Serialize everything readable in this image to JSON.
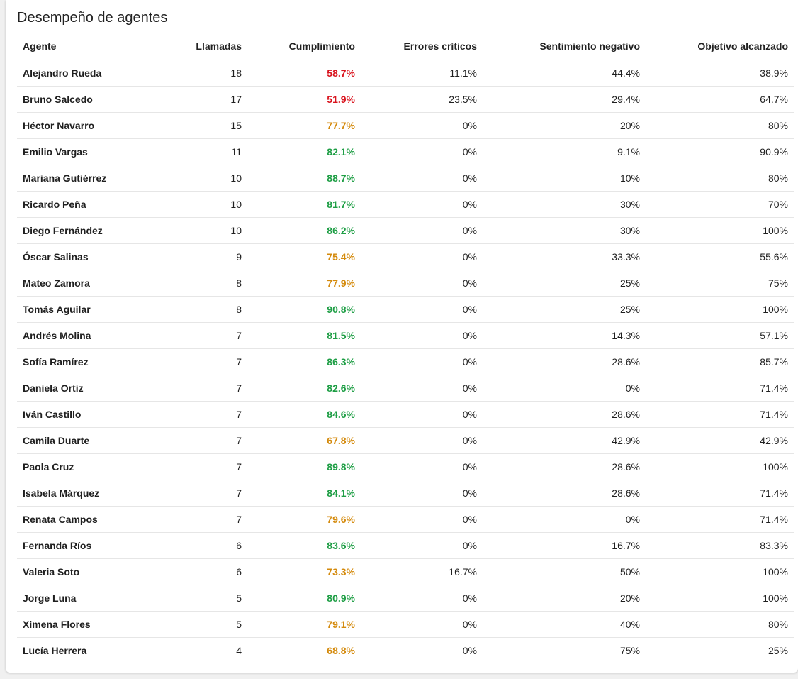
{
  "title": "Desempeño de agentes",
  "colors": {
    "low": "#d9141e",
    "mid": "#d48a0c",
    "high": "#1e9e45"
  },
  "columns": [
    "Agente",
    "Llamadas",
    "Cumplimiento",
    "Errores críticos",
    "Sentimiento negativo",
    "Objetivo alcanzado"
  ],
  "rows": [
    {
      "agent": "Alejandro Rueda",
      "calls": "18",
      "compliance": "58.7%",
      "level": "low",
      "critical": "11.1%",
      "negative": "44.4%",
      "goal": "38.9%"
    },
    {
      "agent": "Bruno Salcedo",
      "calls": "17",
      "compliance": "51.9%",
      "level": "low",
      "critical": "23.5%",
      "negative": "29.4%",
      "goal": "64.7%"
    },
    {
      "agent": "Héctor Navarro",
      "calls": "15",
      "compliance": "77.7%",
      "level": "mid",
      "critical": "0%",
      "negative": "20%",
      "goal": "80%"
    },
    {
      "agent": "Emilio Vargas",
      "calls": "11",
      "compliance": "82.1%",
      "level": "high",
      "critical": "0%",
      "negative": "9.1%",
      "goal": "90.9%"
    },
    {
      "agent": "Mariana Gutiérrez",
      "calls": "10",
      "compliance": "88.7%",
      "level": "high",
      "critical": "0%",
      "negative": "10%",
      "goal": "80%"
    },
    {
      "agent": "Ricardo Peña",
      "calls": "10",
      "compliance": "81.7%",
      "level": "high",
      "critical": "0%",
      "negative": "30%",
      "goal": "70%"
    },
    {
      "agent": "Diego Fernández",
      "calls": "10",
      "compliance": "86.2%",
      "level": "high",
      "critical": "0%",
      "negative": "30%",
      "goal": "100%"
    },
    {
      "agent": "Óscar Salinas",
      "calls": "9",
      "compliance": "75.4%",
      "level": "mid",
      "critical": "0%",
      "negative": "33.3%",
      "goal": "55.6%"
    },
    {
      "agent": "Mateo Zamora",
      "calls": "8",
      "compliance": "77.9%",
      "level": "mid",
      "critical": "0%",
      "negative": "25%",
      "goal": "75%"
    },
    {
      "agent": "Tomás Aguilar",
      "calls": "8",
      "compliance": "90.8%",
      "level": "high",
      "critical": "0%",
      "negative": "25%",
      "goal": "100%"
    },
    {
      "agent": "Andrés Molina",
      "calls": "7",
      "compliance": "81.5%",
      "level": "high",
      "critical": "0%",
      "negative": "14.3%",
      "goal": "57.1%"
    },
    {
      "agent": "Sofía Ramírez",
      "calls": "7",
      "compliance": "86.3%",
      "level": "high",
      "critical": "0%",
      "negative": "28.6%",
      "goal": "85.7%"
    },
    {
      "agent": "Daniela Ortiz",
      "calls": "7",
      "compliance": "82.6%",
      "level": "high",
      "critical": "0%",
      "negative": "0%",
      "goal": "71.4%"
    },
    {
      "agent": "Iván Castillo",
      "calls": "7",
      "compliance": "84.6%",
      "level": "high",
      "critical": "0%",
      "negative": "28.6%",
      "goal": "71.4%"
    },
    {
      "agent": "Camila Duarte",
      "calls": "7",
      "compliance": "67.8%",
      "level": "mid",
      "critical": "0%",
      "negative": "42.9%",
      "goal": "42.9%"
    },
    {
      "agent": "Paola Cruz",
      "calls": "7",
      "compliance": "89.8%",
      "level": "high",
      "critical": "0%",
      "negative": "28.6%",
      "goal": "100%"
    },
    {
      "agent": "Isabela Márquez",
      "calls": "7",
      "compliance": "84.1%",
      "level": "high",
      "critical": "0%",
      "negative": "28.6%",
      "goal": "71.4%"
    },
    {
      "agent": "Renata Campos",
      "calls": "7",
      "compliance": "79.6%",
      "level": "mid",
      "critical": "0%",
      "negative": "0%",
      "goal": "71.4%"
    },
    {
      "agent": "Fernanda Ríos",
      "calls": "6",
      "compliance": "83.6%",
      "level": "high",
      "critical": "0%",
      "negative": "16.7%",
      "goal": "83.3%"
    },
    {
      "agent": "Valeria Soto",
      "calls": "6",
      "compliance": "73.3%",
      "level": "mid",
      "critical": "16.7%",
      "negative": "50%",
      "goal": "100%"
    },
    {
      "agent": "Jorge Luna",
      "calls": "5",
      "compliance": "80.9%",
      "level": "high",
      "critical": "0%",
      "negative": "20%",
      "goal": "100%"
    },
    {
      "agent": "Ximena Flores",
      "calls": "5",
      "compliance": "79.1%",
      "level": "mid",
      "critical": "0%",
      "negative": "40%",
      "goal": "80%"
    },
    {
      "agent": "Lucía Herrera",
      "calls": "4",
      "compliance": "68.8%",
      "level": "mid",
      "critical": "0%",
      "negative": "75%",
      "goal": "25%"
    }
  ]
}
